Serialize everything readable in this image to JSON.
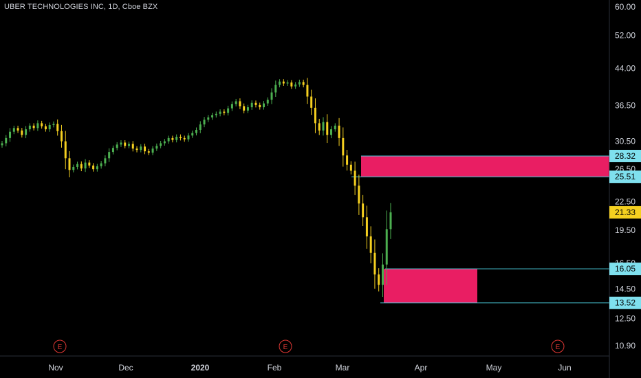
{
  "symbol_title": "UBER TECHNOLOGIES INC, 1D, Cboe BZX",
  "colors": {
    "background": "#000000",
    "up": "#26a69a",
    "up_bar": "#4caf50",
    "down": "#f5d020",
    "zone": "#e91e63",
    "level_line": "#4dd0e1",
    "axis_text": "#d1d4dc",
    "earnings": "#e53935"
  },
  "price_axis": {
    "ticks": [
      "60.00",
      "52.00",
      "44.00",
      "36.50",
      "30.50",
      "26.50",
      "22.50",
      "19.50",
      "16.50",
      "14.50",
      "12.50",
      "10.90"
    ],
    "log_scale": true
  },
  "price_labels": [
    {
      "value": "28.32",
      "style": "cyan"
    },
    {
      "value": "25.51",
      "style": "cyan"
    },
    {
      "value": "21.33",
      "style": "yellow"
    },
    {
      "value": "16.05",
      "style": "cyan"
    },
    {
      "value": "13.52",
      "style": "cyan"
    }
  ],
  "time_axis": {
    "labels": [
      {
        "text": "Nov",
        "bold": false
      },
      {
        "text": "Dec",
        "bold": false
      },
      {
        "text": "2020",
        "bold": true
      },
      {
        "text": "Feb",
        "bold": false
      },
      {
        "text": "Mar",
        "bold": false
      },
      {
        "text": "Apr",
        "bold": false
      },
      {
        "text": "May",
        "bold": false
      },
      {
        "text": "Jun",
        "bold": false
      }
    ]
  },
  "earnings_markers": [
    {
      "label": "E",
      "date": "Nov"
    },
    {
      "label": "E",
      "date": "Feb"
    },
    {
      "label": "E",
      "date": "May-end"
    }
  ],
  "chart_data": {
    "type": "ohlc",
    "title": "UBER TECHNOLOGIES INC, 1D, Cboe BZX",
    "y_scale": "log",
    "ylim": [
      10.5,
      62
    ],
    "closes": [
      30.2,
      31.0,
      32.0,
      32.6,
      32.2,
      31.5,
      32.4,
      33.0,
      32.6,
      33.4,
      32.9,
      32.4,
      33.1,
      33.3,
      32.1,
      30.5,
      28.0,
      26.4,
      26.8,
      27.2,
      26.6,
      27.4,
      27.0,
      26.5,
      26.9,
      27.3,
      28.0,
      28.9,
      29.5,
      30.0,
      30.3,
      29.8,
      30.1,
      29.4,
      29.2,
      29.7,
      29.0,
      28.8,
      29.4,
      29.8,
      30.2,
      30.5,
      31.0,
      30.7,
      31.2,
      31.0,
      30.8,
      31.4,
      31.8,
      32.3,
      33.2,
      34.0,
      34.4,
      34.8,
      35.0,
      35.4,
      35.2,
      36.0,
      36.8,
      37.3,
      36.4,
      35.6,
      36.2,
      37.0,
      36.6,
      36.2,
      36.9,
      37.6,
      39.0,
      40.5,
      41.2,
      40.8,
      41.0,
      40.2,
      40.6,
      41.1,
      40.5,
      38.2,
      36.1,
      33.4,
      32.2,
      33.6,
      31.5,
      32.4,
      33.0,
      31.0,
      28.4,
      27.1,
      26.3,
      24.4,
      22.3,
      20.8,
      18.9,
      17.4,
      15.6,
      14.8,
      16.4,
      19.6,
      21.33
    ],
    "levels": [
      28.32,
      25.51,
      16.05,
      13.52
    ],
    "zones": [
      {
        "low": 25.51,
        "high": 28.32
      },
      {
        "low": 13.52,
        "high": 16.05
      }
    ]
  }
}
